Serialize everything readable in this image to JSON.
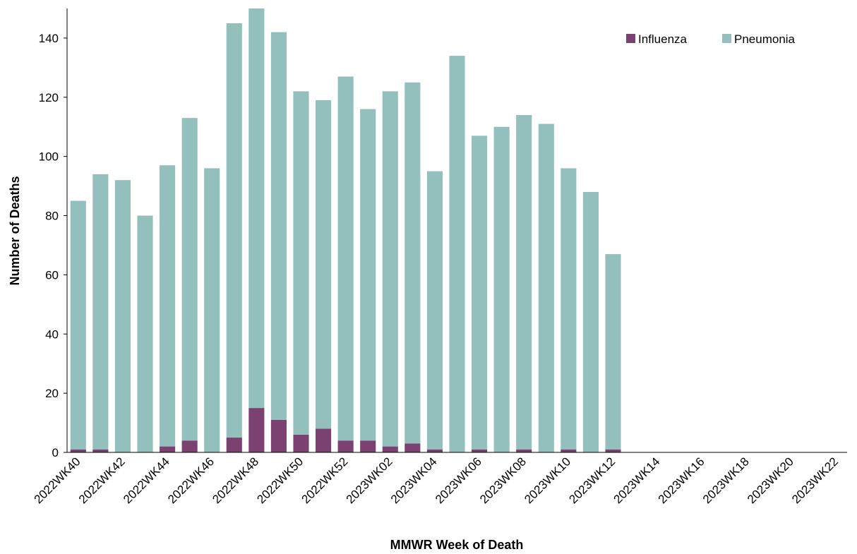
{
  "chart_data": {
    "type": "stacked-bar",
    "x_label": "MMWR Week of Death",
    "y_label": "Number of Deaths",
    "categories": [
      "2022WK40",
      null,
      "2022WK42",
      null,
      "2022WK44",
      null,
      "2022WK46",
      null,
      "2022WK48",
      null,
      "2022WK50",
      null,
      "2022WK52",
      null,
      "2023WK02",
      null,
      "2023WK04",
      null,
      "2023WK06",
      null,
      "2023WK08",
      null,
      "2023WK10",
      null,
      "2023WK12",
      null,
      "2023WK14",
      null,
      "2023WK16",
      null,
      "2023WK18",
      null,
      "2023WK20",
      null,
      "2023WK22"
    ],
    "series": [
      {
        "name": "Influenza",
        "color": "#7b4170",
        "values": [
          1,
          1,
          0,
          0,
          2,
          4,
          0,
          5,
          15,
          11,
          6,
          8,
          4,
          4,
          2,
          3,
          1,
          0,
          1,
          0,
          1,
          0,
          1,
          0,
          1,
          null,
          null,
          null,
          null,
          null,
          null,
          null,
          null,
          null,
          null
        ]
      },
      {
        "name": "Pneumonia",
        "color": "#93bfbd",
        "values": [
          84,
          93,
          92,
          80,
          95,
          109,
          96,
          140,
          135,
          131,
          116,
          111,
          123,
          112,
          120,
          122,
          94,
          134,
          106,
          110,
          113,
          111,
          95,
          88,
          66,
          null,
          null,
          null,
          null,
          null,
          null,
          null,
          null,
          null,
          null
        ]
      }
    ],
    "ylim": [
      0,
      150
    ],
    "yticks": [
      0,
      20,
      40,
      60,
      80,
      100,
      120,
      140
    ],
    "grid": false,
    "legend": "top-right"
  }
}
